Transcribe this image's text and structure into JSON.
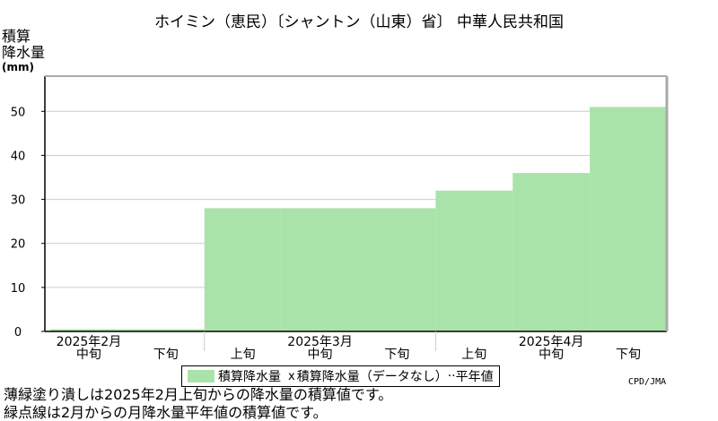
{
  "title": "ホイミン（恵民）〔シャントン（山東）省〕 中華人民共和国",
  "y_axis": {
    "line1": "積算",
    "line2": "降水量",
    "unit": "(mm)"
  },
  "legend": {
    "fill_label": "積算降水量",
    "cross_symbol": "x",
    "normal_label": "積算降水量（データなし）",
    "normal_sep": "··",
    "normal_suffix": "平年値"
  },
  "credit": "CPD/JMA",
  "notes": [
    "薄緑塗り潰しは2025年2月上旬からの降水量の積算値です。",
    "緑点線は2月からの月降水量平年値の積算値です。"
  ],
  "colors": {
    "fill": "#aae3aa",
    "frame": "#000000",
    "grid": "#cccccc",
    "right_axis": "#aaaaaa"
  },
  "chart_data": {
    "type": "area",
    "dekads": [
      {
        "month": "2025年2月",
        "period": "中旬",
        "value": 0.5
      },
      {
        "month": "2025年2月",
        "period": "下旬",
        "value": 0.5
      },
      {
        "month": "2025年3月",
        "period": "上旬",
        "value": 28
      },
      {
        "month": "2025年3月",
        "period": "中旬",
        "value": 28
      },
      {
        "month": "2025年3月",
        "period": "下旬",
        "value": 28
      },
      {
        "month": "2025年4月",
        "period": "上旬",
        "value": 32
      },
      {
        "month": "2025年4月",
        "period": "中旬",
        "value": 36
      },
      {
        "month": "2025年4月",
        "period": "下旬",
        "value": 51
      }
    ],
    "month_labels": [
      {
        "label": "2025年2月",
        "center_dekad": 0
      },
      {
        "label": "2025年3月",
        "center_dekad": 3
      },
      {
        "label": "2025年4月",
        "center_dekad": 6
      }
    ],
    "yticks": [
      0,
      10,
      20,
      30,
      40,
      50
    ],
    "ylim": [
      0,
      58
    ],
    "grid": true,
    "legend_position": "bottom"
  }
}
